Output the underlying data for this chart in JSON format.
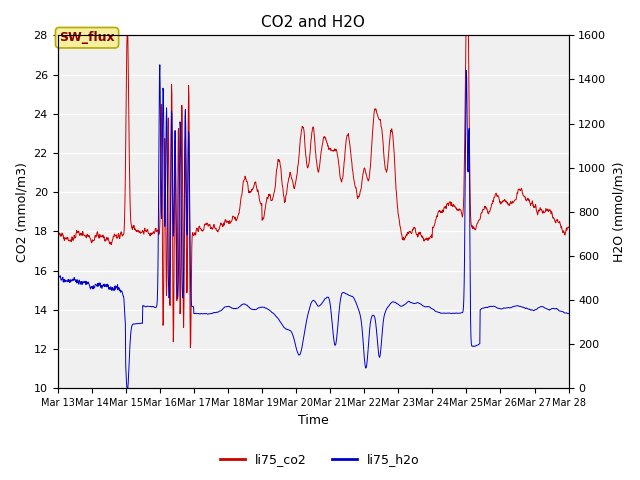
{
  "title": "CO2 and H2O",
  "xlabel": "Time",
  "ylabel_left": "CO2 (mmol/m3)",
  "ylabel_right": "H2O (mmol/m3)",
  "ylim_left": [
    10,
    28
  ],
  "ylim_right": [
    0,
    1600
  ],
  "yticks_left": [
    10,
    12,
    14,
    16,
    18,
    20,
    22,
    24,
    26,
    28
  ],
  "yticks_right": [
    0,
    200,
    400,
    600,
    800,
    1000,
    1200,
    1400,
    1600
  ],
  "color_co2": "#cc0000",
  "color_h2o": "#0000cc",
  "legend_co2": "li75_co2",
  "legend_h2o": "li75_h2o",
  "annotation_text": "SW_flux",
  "fig_bg": "#ffffff",
  "axes_bg": "#f0f0f0",
  "grid_color": "#ffffff",
  "tick_labels": [
    "Mar 13",
    "Mar 14",
    "Mar 15",
    "Mar 16",
    "Mar 17",
    "Mar 18",
    "Mar 19",
    "Mar 20",
    "Mar 21",
    "Mar 22",
    "Mar 23",
    "Mar 24",
    "Mar 25",
    "Mar 26",
    "Mar 27",
    "Mar 28"
  ],
  "tick_positions": [
    0,
    1,
    2,
    3,
    4,
    5,
    6,
    7,
    8,
    9,
    10,
    11,
    12,
    13,
    14,
    15
  ]
}
